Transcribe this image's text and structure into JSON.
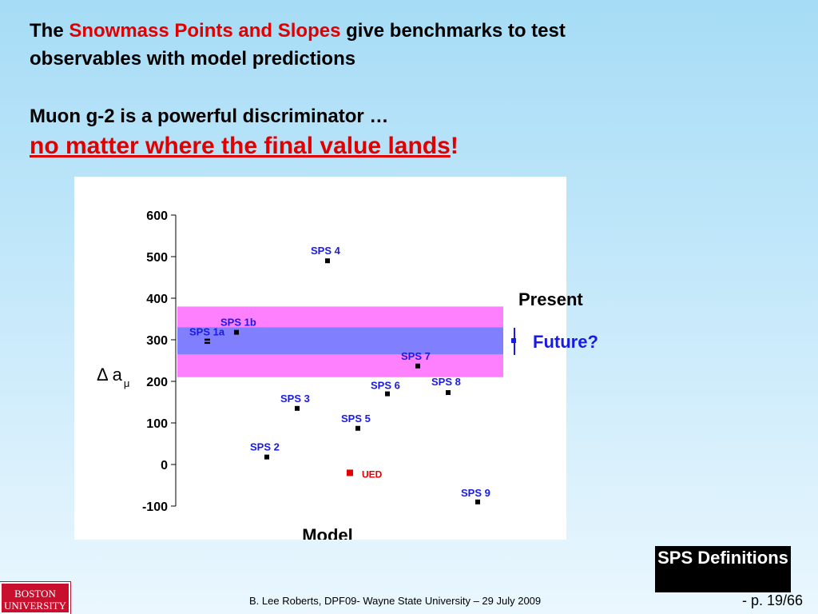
{
  "slide": {
    "line1_prefix": "The ",
    "line1_highlight": "Snowmass Points and Slopes",
    "line1_suffix": " give benchmarks to test",
    "line2": "observables with model predictions",
    "line3": "Muon g-2 is a powerful discriminator …",
    "line4_main": "no matter where the final value lands",
    "line4_end": "!",
    "legend_present": "Present",
    "legend_future": "Future?",
    "button_label": "SPS Definitions",
    "footer": "B. Lee Roberts,  DPF09- Wayne State University – 29 July 2009",
    "page_number": "- p. 19/66",
    "logo_top": "BOSTON",
    "logo_bottom": "UNIVERSITY",
    "colors": {
      "highlight_text": "#e00000",
      "present_band": "#ff80ff",
      "future_band": "#8080ff",
      "point": "#000000",
      "ued_point": "#e00000",
      "label_blue": "#1a1ae6"
    }
  },
  "chart_data": {
    "type": "scatter",
    "title": "",
    "xlabel": "Model",
    "ylabel": "Δ aμ",
    "ylim": [
      -100,
      600
    ],
    "yticks": [
      -100,
      0,
      100,
      200,
      300,
      400,
      500,
      600
    ],
    "grid": false,
    "bands": [
      {
        "name": "Present",
        "ymin": 210,
        "ymax": 380
      },
      {
        "name": "Future?",
        "ymin": 265,
        "ymax": 330
      }
    ],
    "points": [
      {
        "label": "SPS 1a",
        "x": 1,
        "y": 295
      },
      {
        "label": "SPS 1b",
        "x": 2,
        "y": 318
      },
      {
        "label": "SPS 2",
        "x": 3,
        "y": 18
      },
      {
        "label": "SPS 3",
        "x": 4,
        "y": 135
      },
      {
        "label": "SPS 4",
        "x": 5,
        "y": 490
      },
      {
        "label": "SPS 5",
        "x": 6,
        "y": 87
      },
      {
        "label": "UED",
        "x": 6,
        "y": -20
      },
      {
        "label": "SPS 6",
        "x": 7,
        "y": 170
      },
      {
        "label": "SPS 7",
        "x": 8,
        "y": 237
      },
      {
        "label": "SPS 8",
        "x": 9,
        "y": 173
      },
      {
        "label": "SPS 9",
        "x": 10,
        "y": -90
      }
    ]
  }
}
